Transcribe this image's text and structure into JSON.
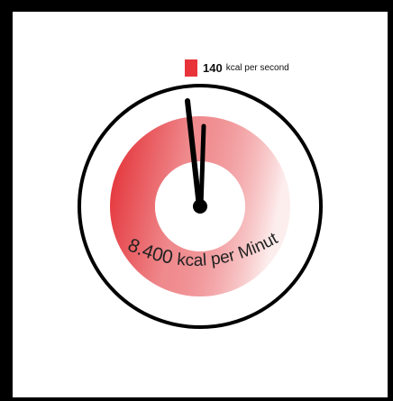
{
  "legend": {
    "value": "140",
    "unit": "kcal per second",
    "swatch_color": "#e8333a"
  },
  "dial": {
    "reading_value": "8.400",
    "reading_unit": "kcal per Minute!",
    "ring_color": "#000000",
    "fill_color_strong": "#e2292f",
    "fill_color_light": "#fdeeee",
    "hand_color": "#000000"
  }
}
